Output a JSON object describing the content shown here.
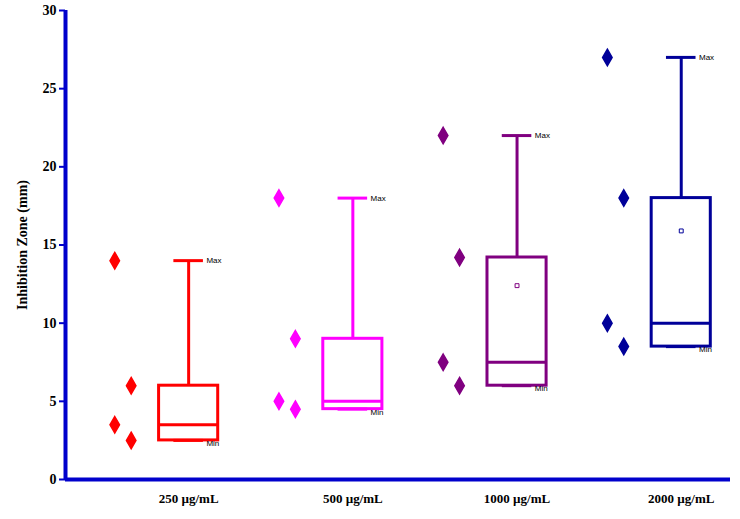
{
  "chart_data": {
    "type": "box",
    "y_label": "Inhibition Zone (mm)",
    "categories": [
      "250 µg/mL",
      "500 µg/mL",
      "1000 µg/mL",
      "2000 µg/mL"
    ],
    "colors": [
      "#ff0000",
      "#ff00ff",
      "#800080",
      "#000099"
    ],
    "points": [
      [
        14,
        6,
        3.5,
        2.5
      ],
      [
        18,
        9,
        5,
        4.5
      ],
      [
        22,
        14.2,
        7.5,
        6
      ],
      [
        27,
        18,
        10,
        8.5
      ]
    ],
    "min": [
      2.5,
      4.5,
      6,
      8.5
    ],
    "q1": [
      2.5,
      4.5,
      6,
      8.5
    ],
    "median": [
      3.5,
      5,
      7.5,
      10
    ],
    "q3": [
      6,
      9,
      14.2,
      18
    ],
    "max": [
      14,
      18,
      22,
      27
    ],
    "mean": [
      null,
      null,
      12.4,
      15.9
    ],
    "max_label": "Max",
    "min_label": "Min",
    "ylim": [
      0,
      30
    ],
    "yticks": [
      0,
      5,
      10,
      15,
      20,
      25,
      30
    ]
  }
}
